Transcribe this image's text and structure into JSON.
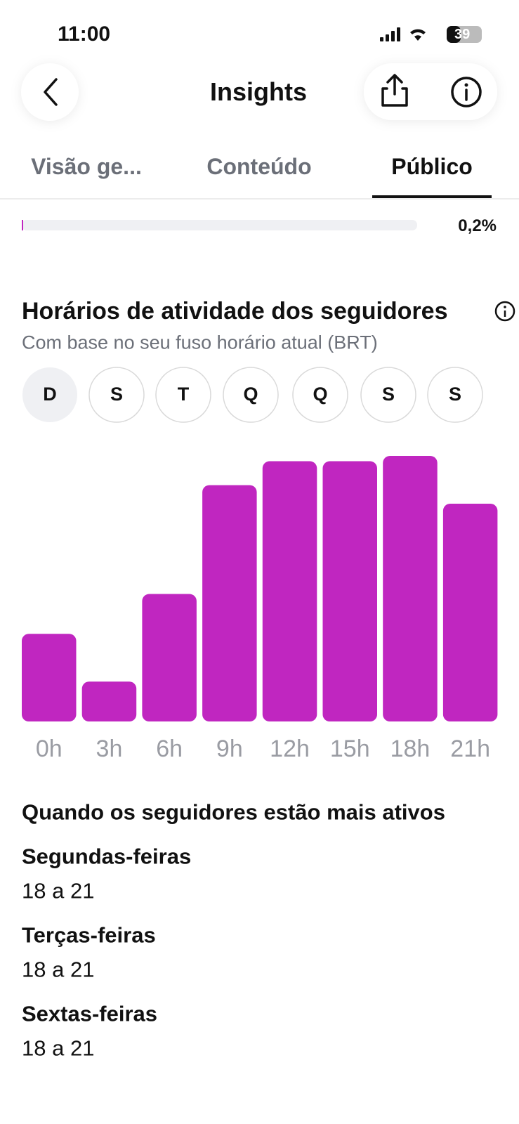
{
  "status_bar": {
    "time": "11:00",
    "battery": "39"
  },
  "header": {
    "title": "Insights"
  },
  "tabs": [
    "Visão ge...",
    "Conteúdo",
    "Público"
  ],
  "progress": {
    "value": 0.2,
    "label": "0,2%"
  },
  "section": {
    "title": "Horários de atividade dos seguidores",
    "subtitle": "Com base no seu fuso horário atual (BRT)",
    "days": [
      "D",
      "S",
      "T",
      "Q",
      "Q",
      "S",
      "S"
    ]
  },
  "chart_data": {
    "type": "bar",
    "categories": [
      "0h",
      "3h",
      "6h",
      "9h",
      "12h",
      "15h",
      "18h",
      "21h"
    ],
    "values": [
      33,
      15,
      48,
      89,
      98,
      98,
      100,
      82
    ],
    "color": "#c026c0",
    "ylim": [
      0,
      100
    ]
  },
  "active": {
    "title": "Quando os seguidores estão mais ativos",
    "items": [
      {
        "day": "Segundas-feiras",
        "hours": "18 a 21"
      },
      {
        "day": "Terças-feiras",
        "hours": "18 a 21"
      },
      {
        "day": "Sextas-feiras",
        "hours": "18 a 21"
      }
    ]
  }
}
